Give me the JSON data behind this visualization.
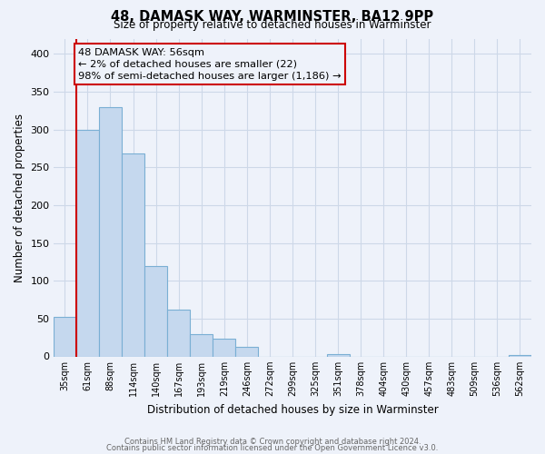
{
  "title": "48, DAMASK WAY, WARMINSTER, BA12 9PP",
  "subtitle": "Size of property relative to detached houses in Warminster",
  "xlabel": "Distribution of detached houses by size in Warminster",
  "ylabel": "Number of detached properties",
  "bar_color": "#c5d8ee",
  "bar_edge_color": "#7aafd4",
  "marker_line_color": "#cc0000",
  "annotation_box_color": "#cc0000",
  "grid_color": "#cdd8e8",
  "background_color": "#eef2fa",
  "categories": [
    "35sqm",
    "61sqm",
    "88sqm",
    "114sqm",
    "140sqm",
    "167sqm",
    "193sqm",
    "219sqm",
    "246sqm",
    "272sqm",
    "299sqm",
    "325sqm",
    "351sqm",
    "378sqm",
    "404sqm",
    "430sqm",
    "457sqm",
    "483sqm",
    "509sqm",
    "536sqm",
    "562sqm"
  ],
  "values": [
    52,
    300,
    330,
    268,
    120,
    62,
    29,
    24,
    13,
    0,
    0,
    0,
    3,
    0,
    0,
    0,
    0,
    0,
    0,
    0,
    2
  ],
  "ylim": [
    0,
    420
  ],
  "yticks": [
    0,
    50,
    100,
    150,
    200,
    250,
    300,
    350,
    400
  ],
  "annotation_text_line1": "48 DAMASK WAY: 56sqm",
  "annotation_text_line2": "← 2% of detached houses are smaller (22)",
  "annotation_text_line3": "98% of semi-detached houses are larger (1,186) →",
  "footer_line1": "Contains HM Land Registry data © Crown copyright and database right 2024.",
  "footer_line2": "Contains public sector information licensed under the Open Government Licence v3.0."
}
